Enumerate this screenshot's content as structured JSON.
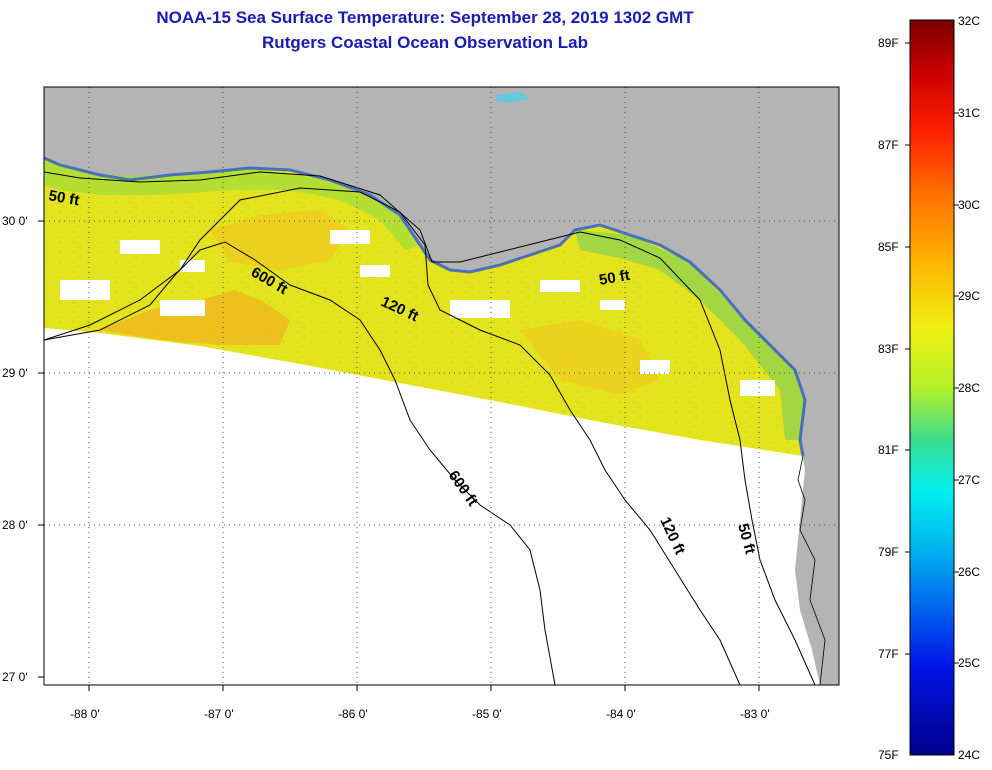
{
  "title": "NOAA-15 Sea Surface Temperature:  September 28, 2019 1302 GMT",
  "subtitle": "Rutgers Coastal Ocean Observation Lab",
  "lat_ticks": [
    "30 0'",
    "29 0'",
    "28 0'",
    "27 0'"
  ],
  "lon_ticks": [
    "-88 0'",
    "-87 0'",
    "-86 0'",
    "-85 0'",
    "-84 0'",
    "-83 0'"
  ],
  "contour_labels": {
    "c50_west": "50 ft",
    "c600_north": "600 ft",
    "c120_north": "120 ft",
    "c50_east": "50 ft",
    "c600_south": "600 ft",
    "c120_south": "120 ft",
    "c50_south": "50 ft"
  },
  "colorbar": {
    "f_labels": [
      "89F",
      "87F",
      "85F",
      "83F",
      "81F",
      "79F",
      "77F",
      "75F"
    ],
    "c_labels": [
      "32C",
      "31C",
      "30C",
      "29C",
      "28C",
      "27C",
      "26C",
      "25C",
      "24C"
    ]
  },
  "colors": {
    "land": "#b4b4b4",
    "title": "#1a1ab4",
    "sst_dominant": "#e6e61e"
  }
}
